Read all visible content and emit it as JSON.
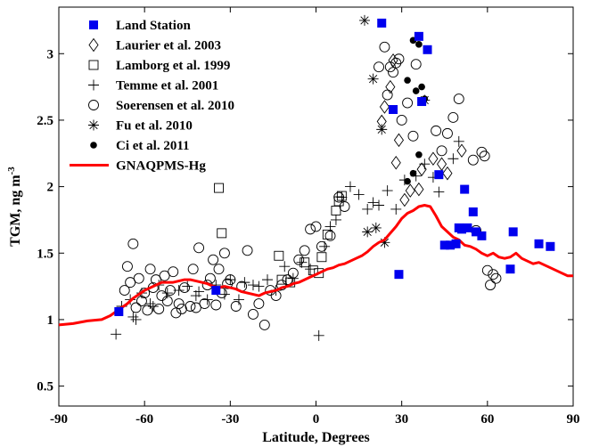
{
  "chart_data": {
    "type": "scatter",
    "xlabel": "Latitude, Degrees",
    "ylabel_main": "TGM, ng m",
    "ylabel_exp": "-3",
    "xlim": [
      -90,
      90
    ],
    "ylim": [
      0.35,
      3.35
    ],
    "xticks": [
      -90,
      -60,
      -30,
      0,
      30,
      60,
      90
    ],
    "xtick_labels": [
      "-90",
      "-60",
      "-30",
      "0",
      "30",
      "60",
      "90"
    ],
    "yticks": [
      0.5,
      1,
      1.5,
      2,
      2.5,
      3
    ],
    "ytick_labels": [
      "0.5",
      "1",
      "1.5",
      "2",
      "2.5",
      "3"
    ],
    "grid": false,
    "legend_position": "top-left",
    "series": [
      {
        "name": "Land Station",
        "marker": "filled-square",
        "color": "#0000ee",
        "points": [
          [
            -69,
            1.06
          ],
          [
            -35,
            1.22
          ],
          [
            23,
            3.23
          ],
          [
            36,
            3.13
          ],
          [
            39,
            3.03
          ],
          [
            27,
            2.58
          ],
          [
            37,
            2.64
          ],
          [
            29,
            1.34
          ],
          [
            43,
            2.09
          ],
          [
            52,
            1.98
          ],
          [
            55,
            1.81
          ],
          [
            45,
            1.56
          ],
          [
            47,
            1.56
          ],
          [
            49,
            1.57
          ],
          [
            50,
            1.69
          ],
          [
            51,
            1.68
          ],
          [
            53,
            1.69
          ],
          [
            56,
            1.66
          ],
          [
            58,
            1.63
          ],
          [
            68,
            1.38
          ],
          [
            69,
            1.66
          ],
          [
            78,
            1.57
          ],
          [
            82,
            1.55
          ]
        ]
      },
      {
        "name": "Laurier et al. 2003",
        "marker": "open-diamond",
        "color": "#000000",
        "points": [
          [
            27,
            2.95
          ],
          [
            26,
            2.75
          ],
          [
            24,
            2.6
          ],
          [
            23,
            2.49
          ],
          [
            29,
            2.35
          ],
          [
            28,
            2.18
          ],
          [
            31,
            1.9
          ],
          [
            33,
            1.97
          ],
          [
            41,
            2.21
          ],
          [
            44,
            2.17
          ],
          [
            46,
            2.1
          ],
          [
            51,
            2.27
          ],
          [
            36,
            1.98
          ],
          [
            37,
            2.13
          ]
        ]
      },
      {
        "name": "Lamborg et al. 1999",
        "marker": "open-square",
        "color": "#000000",
        "points": [
          [
            -34,
            1.99
          ],
          [
            -33,
            1.65
          ],
          [
            -13,
            1.48
          ],
          [
            -4,
            1.43
          ],
          [
            4,
            1.64
          ],
          [
            7,
            1.82
          ],
          [
            8,
            1.89
          ],
          [
            9,
            1.93
          ],
          [
            -12,
            1.3
          ],
          [
            2,
            1.47
          ],
          [
            1,
            1.35
          ],
          [
            -1,
            1.37
          ],
          [
            -9,
            1.28
          ]
        ]
      },
      {
        "name": "Temme et al. 2001",
        "marker": "plus",
        "color": "#000000",
        "points": [
          [
            -70,
            0.89
          ],
          [
            -68,
            1.1
          ],
          [
            -65,
            1.15
          ],
          [
            -63,
            1.0
          ],
          [
            -61,
            1.2
          ],
          [
            -58,
            1.12
          ],
          [
            -55,
            1.26
          ],
          [
            -52,
            1.2
          ],
          [
            -48,
            1.22
          ],
          [
            -45,
            1.25
          ],
          [
            -42,
            1.18
          ],
          [
            -38,
            1.15
          ],
          [
            -35,
            1.26
          ],
          [
            -32,
            1.19
          ],
          [
            -30,
            1.3
          ],
          [
            -27,
            1.15
          ],
          [
            -25,
            1.28
          ],
          [
            -22,
            1.26
          ],
          [
            -20,
            1.25
          ],
          [
            -17,
            1.3
          ],
          [
            -14,
            1.22
          ],
          [
            -11,
            1.4
          ],
          [
            -8,
            1.31
          ],
          [
            -5,
            1.43
          ],
          [
            -2,
            1.38
          ],
          [
            1,
            0.88
          ],
          [
            3,
            1.55
          ],
          [
            5,
            1.7
          ],
          [
            7,
            1.75
          ],
          [
            9,
            1.92
          ],
          [
            12,
            2.0
          ],
          [
            15,
            1.94
          ],
          [
            18,
            1.83
          ],
          [
            20,
            1.88
          ],
          [
            22,
            1.86
          ],
          [
            25,
            1.97
          ],
          [
            28,
            1.83
          ],
          [
            31,
            2.05
          ],
          [
            35,
            2.08
          ],
          [
            38,
            2.17
          ],
          [
            41,
            2.07
          ],
          [
            43,
            1.96
          ],
          [
            48,
            2.21
          ],
          [
            50,
            2.34
          ],
          [
            -64,
            1.02
          ],
          [
            -57,
            1.1
          ],
          [
            -41,
            1.21
          ]
        ]
      },
      {
        "name": "Soerensen et al. 2010",
        "marker": "open-circle",
        "color": "#000000",
        "points": [
          [
            -66,
            1.4
          ],
          [
            -64,
            1.57
          ],
          [
            -67,
            1.22
          ],
          [
            -65,
            1.28
          ],
          [
            -63,
            1.09
          ],
          [
            -62,
            1.31
          ],
          [
            -61,
            1.14
          ],
          [
            -60,
            1.2
          ],
          [
            -59,
            1.07
          ],
          [
            -58,
            1.38
          ],
          [
            -57,
            1.24
          ],
          [
            -56,
            1.3
          ],
          [
            -55,
            1.08
          ],
          [
            -54,
            1.18
          ],
          [
            -53,
            1.33
          ],
          [
            -52,
            1.14
          ],
          [
            -51,
            1.22
          ],
          [
            -50,
            1.36
          ],
          [
            -49,
            1.05
          ],
          [
            -48,
            1.12
          ],
          [
            -47,
            1.08
          ],
          [
            -46,
            1.24
          ],
          [
            -44,
            1.1
          ],
          [
            -43,
            1.38
          ],
          [
            -42,
            1.09
          ],
          [
            -41,
            1.54
          ],
          [
            -39,
            1.12
          ],
          [
            -38,
            1.26
          ],
          [
            -37,
            1.31
          ],
          [
            -36,
            1.45
          ],
          [
            -35,
            1.11
          ],
          [
            -34,
            1.38
          ],
          [
            -33,
            1.2
          ],
          [
            -32,
            1.5
          ],
          [
            -31,
            1.27
          ],
          [
            -30,
            1.3
          ],
          [
            -28,
            1.1
          ],
          [
            -26,
            1.25
          ],
          [
            -24,
            1.52
          ],
          [
            -22,
            1.04
          ],
          [
            -20,
            1.12
          ],
          [
            -18,
            0.96
          ],
          [
            -16,
            1.22
          ],
          [
            -14,
            1.18
          ],
          [
            -12,
            1.26
          ],
          [
            -10,
            1.3
          ],
          [
            -8,
            1.35
          ],
          [
            -6,
            1.45
          ],
          [
            -4,
            1.52
          ],
          [
            -2,
            1.68
          ],
          [
            0,
            1.7
          ],
          [
            2,
            1.55
          ],
          [
            5,
            1.63
          ],
          [
            8,
            1.92
          ],
          [
            10,
            1.85
          ],
          [
            24,
            3.05
          ],
          [
            26,
            2.9
          ],
          [
            27,
            2.86
          ],
          [
            28,
            2.93
          ],
          [
            29,
            2.96
          ],
          [
            25,
            2.69
          ],
          [
            30,
            2.5
          ],
          [
            32,
            2.63
          ],
          [
            34,
            2.38
          ],
          [
            35,
            2.92
          ],
          [
            42,
            2.42
          ],
          [
            44,
            2.27
          ],
          [
            46,
            2.4
          ],
          [
            48,
            2.52
          ],
          [
            50,
            2.66
          ],
          [
            55,
            2.2
          ],
          [
            58,
            2.26
          ],
          [
            59,
            2.23
          ],
          [
            60,
            1.37
          ],
          [
            61,
            1.26
          ],
          [
            62,
            1.34
          ],
          [
            63,
            1.31
          ],
          [
            56,
            1.67
          ],
          [
            22,
            2.9
          ]
        ]
      },
      {
        "name": "Fu et al. 2010",
        "marker": "asterisk",
        "color": "#000000",
        "points": [
          [
            17,
            3.25
          ],
          [
            20,
            2.81
          ],
          [
            23,
            2.43
          ],
          [
            21,
            1.69
          ],
          [
            18,
            1.66
          ],
          [
            24,
            1.58
          ],
          [
            38,
            2.65
          ]
        ]
      },
      {
        "name": "Ci et al. 2011",
        "marker": "filled-circle",
        "color": "#000000",
        "points": [
          [
            34,
            3.1
          ],
          [
            36,
            3.07
          ],
          [
            32,
            2.8
          ],
          [
            35,
            2.72
          ],
          [
            37,
            2.75
          ],
          [
            38,
            2.66
          ],
          [
            36,
            2.24
          ],
          [
            34,
            2.1
          ],
          [
            32,
            2.04
          ]
        ]
      }
    ],
    "model": {
      "name": "GNAQPMS-Hg",
      "color": "#ff0000",
      "type": "line",
      "points": [
        [
          -90,
          0.96
        ],
        [
          -85,
          0.97
        ],
        [
          -80,
          0.99
        ],
        [
          -75,
          1.0
        ],
        [
          -72,
          1.03
        ],
        [
          -70,
          1.06
        ],
        [
          -68,
          1.09
        ],
        [
          -66,
          1.12
        ],
        [
          -64,
          1.16
        ],
        [
          -62,
          1.19
        ],
        [
          -60,
          1.22
        ],
        [
          -58,
          1.24
        ],
        [
          -56,
          1.26
        ],
        [
          -54,
          1.28
        ],
        [
          -52,
          1.28
        ],
        [
          -50,
          1.28
        ],
        [
          -48,
          1.29
        ],
        [
          -46,
          1.3
        ],
        [
          -44,
          1.3
        ],
        [
          -42,
          1.29
        ],
        [
          -40,
          1.28
        ],
        [
          -38,
          1.27
        ],
        [
          -36,
          1.25
        ],
        [
          -34,
          1.24
        ],
        [
          -32,
          1.25
        ],
        [
          -30,
          1.24
        ],
        [
          -28,
          1.23
        ],
        [
          -26,
          1.21
        ],
        [
          -24,
          1.2
        ],
        [
          -22,
          1.19
        ],
        [
          -20,
          1.18
        ],
        [
          -18,
          1.2
        ],
        [
          -16,
          1.21
        ],
        [
          -14,
          1.22
        ],
        [
          -12,
          1.24
        ],
        [
          -10,
          1.25
        ],
        [
          -8,
          1.27
        ],
        [
          -6,
          1.28
        ],
        [
          -4,
          1.3
        ],
        [
          -2,
          1.32
        ],
        [
          0,
          1.34
        ],
        [
          2,
          1.36
        ],
        [
          4,
          1.38
        ],
        [
          6,
          1.39
        ],
        [
          8,
          1.41
        ],
        [
          10,
          1.42
        ],
        [
          12,
          1.44
        ],
        [
          14,
          1.46
        ],
        [
          16,
          1.48
        ],
        [
          18,
          1.51
        ],
        [
          20,
          1.55
        ],
        [
          22,
          1.58
        ],
        [
          24,
          1.6
        ],
        [
          26,
          1.65
        ],
        [
          28,
          1.7
        ],
        [
          30,
          1.76
        ],
        [
          32,
          1.8
        ],
        [
          34,
          1.82
        ],
        [
          36,
          1.85
        ],
        [
          38,
          1.86
        ],
        [
          40,
          1.85
        ],
        [
          42,
          1.78
        ],
        [
          44,
          1.7
        ],
        [
          46,
          1.66
        ],
        [
          48,
          1.62
        ],
        [
          50,
          1.6
        ],
        [
          52,
          1.56
        ],
        [
          54,
          1.55
        ],
        [
          56,
          1.53
        ],
        [
          58,
          1.5
        ],
        [
          60,
          1.48
        ],
        [
          62,
          1.5
        ],
        [
          64,
          1.47
        ],
        [
          66,
          1.46
        ],
        [
          68,
          1.47
        ],
        [
          70,
          1.5
        ],
        [
          72,
          1.46
        ],
        [
          74,
          1.44
        ],
        [
          76,
          1.42
        ],
        [
          78,
          1.43
        ],
        [
          80,
          1.41
        ],
        [
          82,
          1.39
        ],
        [
          84,
          1.37
        ],
        [
          86,
          1.35
        ],
        [
          88,
          1.33
        ],
        [
          90,
          1.33
        ]
      ]
    }
  }
}
